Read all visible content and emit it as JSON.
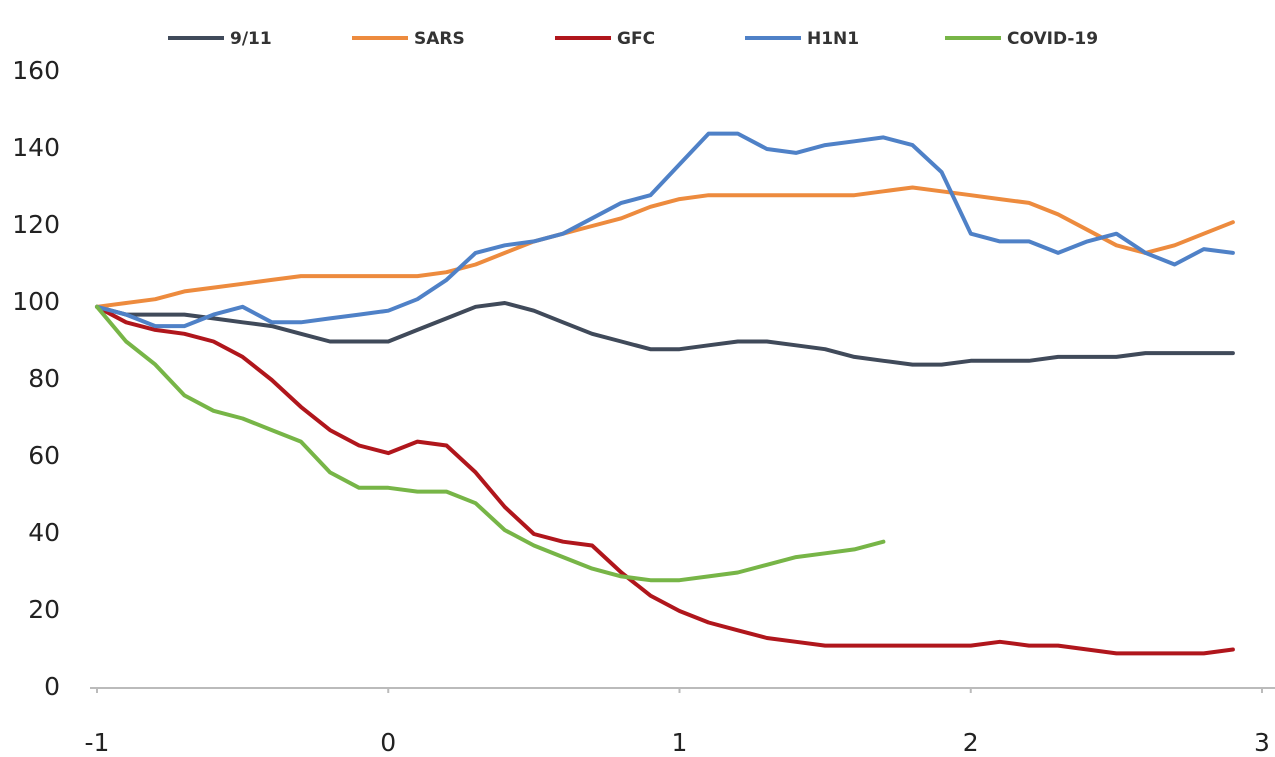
{
  "chart_data": {
    "type": "line",
    "x": [
      -1,
      -0.9,
      -0.8,
      -0.7,
      -0.6,
      -0.5,
      -0.4,
      -0.3,
      -0.2,
      -0.1,
      0,
      0.1,
      0.2,
      0.3,
      0.4,
      0.5,
      0.6,
      0.7,
      0.8,
      0.9,
      1,
      1.1,
      1.2,
      1.3,
      1.4,
      1.5,
      1.6,
      1.7,
      1.8,
      1.9,
      2,
      2.1,
      2.2,
      2.3,
      2.4,
      2.5,
      2.6,
      2.7,
      2.8,
      2.9
    ],
    "series": [
      {
        "name": "9/11",
        "color": "#404a5a",
        "values": [
          99,
          97,
          97,
          97,
          96,
          95,
          94,
          92,
          90,
          90,
          90,
          93,
          96,
          99,
          100,
          98,
          95,
          92,
          90,
          88,
          88,
          89,
          90,
          90,
          89,
          88,
          86,
          85,
          84,
          84,
          85,
          85,
          85,
          86,
          86,
          86,
          87,
          87,
          87,
          87
        ]
      },
      {
        "name": "SARS",
        "color": "#ed8b3e",
        "values": [
          99,
          100,
          101,
          103,
          104,
          105,
          106,
          107,
          107,
          107,
          107,
          107,
          108,
          110,
          113,
          116,
          118,
          120,
          122,
          125,
          127,
          128,
          128,
          128,
          128,
          128,
          128,
          129,
          130,
          129,
          128,
          127,
          126,
          123,
          119,
          115,
          113,
          115,
          118,
          121
        ]
      },
      {
        "name": "GFC",
        "color": "#b0161c",
        "values": [
          99,
          95,
          93,
          92,
          90,
          86,
          80,
          73,
          67,
          63,
          61,
          64,
          63,
          56,
          47,
          40,
          38,
          37,
          30,
          24,
          20,
          17,
          15,
          13,
          12,
          11,
          11,
          11,
          11,
          11,
          11,
          12,
          11,
          11,
          10,
          9,
          9,
          9,
          9,
          10
        ]
      },
      {
        "name": "H1N1",
        "color": "#4f81c7",
        "values": [
          99,
          97,
          94,
          94,
          97,
          99,
          95,
          95,
          96,
          97,
          98,
          101,
          106,
          113,
          115,
          116,
          118,
          122,
          126,
          128,
          136,
          144,
          144,
          140,
          139,
          141,
          142,
          143,
          141,
          134,
          118,
          116,
          116,
          113,
          116,
          118,
          113,
          110,
          114,
          113
        ]
      },
      {
        "name": "COVID-19",
        "color": "#77b547",
        "values": [
          99,
          90,
          84,
          76,
          72,
          70,
          67,
          64,
          56,
          52,
          52,
          51,
          51,
          48,
          41,
          37,
          34,
          31,
          29,
          28,
          28,
          29,
          30,
          32,
          34,
          35,
          36,
          38,
          null,
          null,
          null,
          null,
          null,
          null,
          null,
          null,
          null,
          null,
          null,
          null
        ]
      }
    ],
    "xlim": [
      -1,
      3
    ],
    "xticks": [
      -1,
      0,
      1,
      2,
      3
    ],
    "ylim": [
      0,
      160
    ],
    "yticks": [
      0,
      20,
      40,
      60,
      80,
      100,
      120,
      140,
      160
    ],
    "grid": false,
    "legend": "top"
  }
}
